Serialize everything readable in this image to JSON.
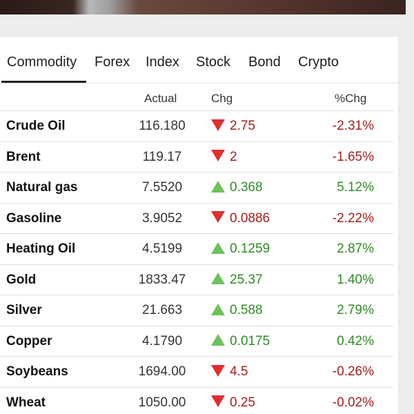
{
  "tabs": [
    {
      "label": "Commodity",
      "active": true
    },
    {
      "label": "Forex",
      "active": false
    },
    {
      "label": "Index",
      "active": false
    },
    {
      "label": "Stock",
      "active": false
    },
    {
      "label": "Bond",
      "active": false
    },
    {
      "label": "Crypto",
      "active": false
    }
  ],
  "table": {
    "headers": {
      "actual": "Actual",
      "chg": "Chg",
      "pct": "%Chg"
    },
    "rows": [
      {
        "name": "Crude Oil",
        "actual": "116.180",
        "chg": "2.75",
        "pct": "-2.31%",
        "direction": "down"
      },
      {
        "name": "Brent",
        "actual": "119.17",
        "chg": "2",
        "pct": "-1.65%",
        "direction": "down"
      },
      {
        "name": "Natural gas",
        "actual": "7.5520",
        "chg": "0.368",
        "pct": "5.12%",
        "direction": "up"
      },
      {
        "name": "Gasoline",
        "actual": "3.9052",
        "chg": "0.0886",
        "pct": "-2.22%",
        "direction": "down"
      },
      {
        "name": "Heating Oil",
        "actual": "4.5199",
        "chg": "0.1259",
        "pct": "2.87%",
        "direction": "up"
      },
      {
        "name": "Gold",
        "actual": "1833.47",
        "chg": "25.37",
        "pct": "1.40%",
        "direction": "up"
      },
      {
        "name": "Silver",
        "actual": "21.663",
        "chg": "0.588",
        "pct": "2.79%",
        "direction": "up"
      },
      {
        "name": "Copper",
        "actual": "4.1790",
        "chg": "0.0175",
        "pct": "0.42%",
        "direction": "up"
      },
      {
        "name": "Soybeans",
        "actual": "1694.00",
        "chg": "4.5",
        "pct": "-0.26%",
        "direction": "down"
      },
      {
        "name": "Wheat",
        "actual": "1050.00",
        "chg": "0.25",
        "pct": "-0.02%",
        "direction": "down"
      }
    ]
  },
  "colors": {
    "down_text": "#a51d1d",
    "up_text": "#2e8b23",
    "down_arrow": "#e02f2f",
    "up_arrow": "#6cc25a"
  },
  "icons": {
    "down": "triangle-down-icon",
    "up": "triangle-up-icon"
  }
}
